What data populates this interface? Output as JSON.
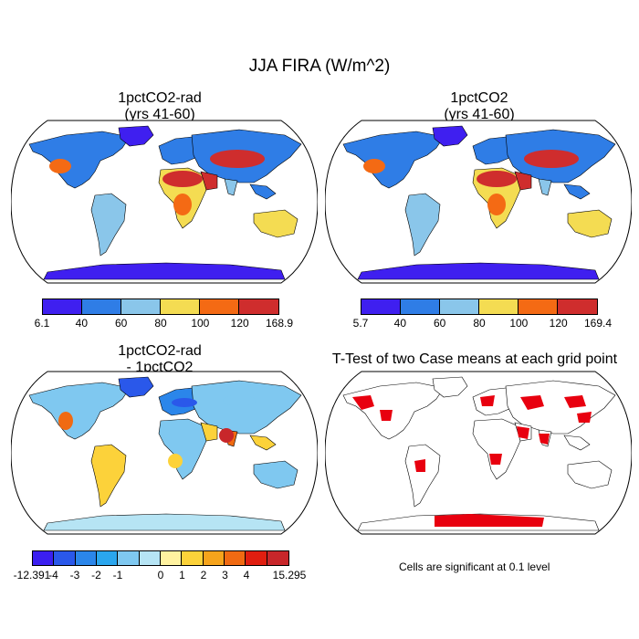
{
  "title": "JJA FIRA (W/m^2)",
  "panels": {
    "p1": {
      "title_line1": "1pctCO2-rad",
      "title_line2": "(yrs 41-60)"
    },
    "p2": {
      "title_line1": "1pctCO2",
      "title_line2": "(yrs 41-60)"
    },
    "p3": {
      "title_line1": "1pctCO2-rad",
      "title_line2": "- 1pctCO2"
    },
    "p4": {
      "title_line1": "T-Test of two Case means at each grid point"
    }
  },
  "colorbar1": {
    "labels": [
      "6.1",
      "40",
      "60",
      "80",
      "100",
      "120",
      "168.9"
    ],
    "colors": [
      "#3f1ff0",
      "#2f7de6",
      "#8ac6ea",
      "#f4dc52",
      "#f46a14",
      "#cf2d2d"
    ]
  },
  "colorbar2": {
    "labels": [
      "5.7",
      "40",
      "60",
      "80",
      "100",
      "120",
      "169.4"
    ],
    "colors": [
      "#3f1ff0",
      "#2f7de6",
      "#8ac6ea",
      "#f4dc52",
      "#f46a14",
      "#cf2d2d"
    ]
  },
  "colorbar3": {
    "labels": [
      "-12.391",
      "-4",
      "-3",
      "-2",
      "-1",
      "0",
      "1",
      "2",
      "3",
      "4",
      "15.295"
    ],
    "colors": [
      "#3b1ff0",
      "#2a58ea",
      "#2b86ea",
      "#2aa6ee",
      "#7fc8f0",
      "#b6e4f4",
      "#fff2a0",
      "#fcd23a",
      "#f6a41c",
      "#f06a12",
      "#e01e10",
      "#c8262a"
    ]
  },
  "note": "Cells are significant at 0.1 level"
}
